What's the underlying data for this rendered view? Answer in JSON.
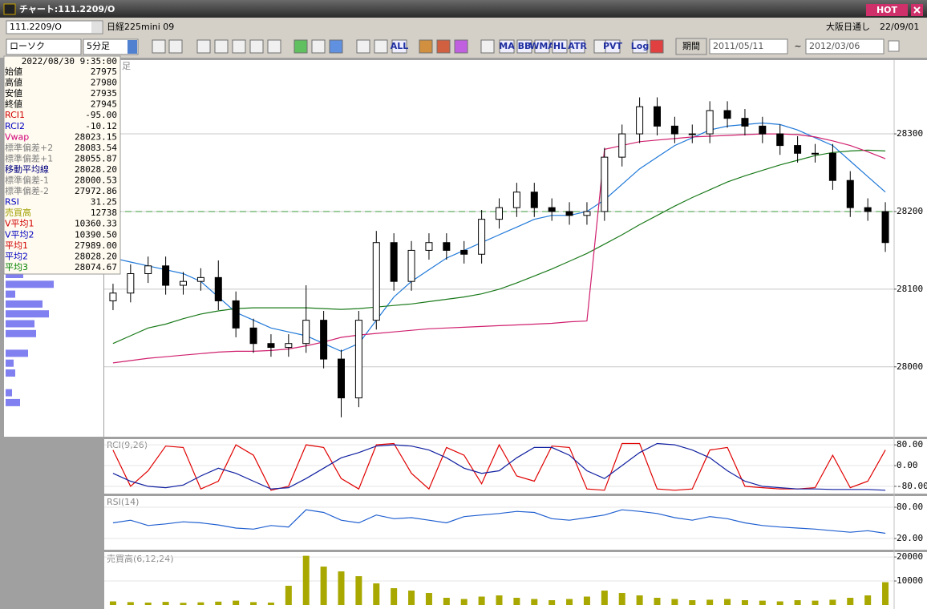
{
  "window": {
    "title": "チャート:111.2209/O",
    "hot": "HOT"
  },
  "header": {
    "symbol": "111.2209/O",
    "name": "日経225mini 09",
    "session": "大阪日通し",
    "date": "22/09/01"
  },
  "toolbar": {
    "chart_style": "ローソク",
    "interval": "5分足",
    "buttons": [
      "ALL",
      "MA",
      "BB",
      "WMA",
      "HL",
      "ATR",
      "PVT",
      "Log"
    ],
    "period": "期間",
    "from": "2011/05/11",
    "tilde": "~",
    "to": "2012/03/06"
  },
  "info_panel": {
    "datetime": "2022/08/30 9:35:00",
    "rows": [
      {
        "label": "始値",
        "value": "27975",
        "color": "#000000"
      },
      {
        "label": "高値",
        "value": "27980",
        "color": "#000000"
      },
      {
        "label": "安値",
        "value": "27935",
        "color": "#000000"
      },
      {
        "label": "終値",
        "value": "27945",
        "color": "#000000"
      },
      {
        "label": "RCI1",
        "value": "-95.00",
        "color": "#d00000"
      },
      {
        "label": "RCI2",
        "value": "-10.12",
        "color": "#0000c0"
      },
      {
        "label": "Vwap",
        "value": "28023.15",
        "color": "#d0007a"
      },
      {
        "label": "標準偏差+2",
        "value": "28083.54",
        "color": "#808080"
      },
      {
        "label": "標準偏差+1",
        "value": "28055.87",
        "color": "#808080"
      },
      {
        "label": "移動平均線",
        "value": "28028.20",
        "color": "#000080"
      },
      {
        "label": "標準偏差-1",
        "value": "28000.53",
        "color": "#808080"
      },
      {
        "label": "標準偏差-2",
        "value": "27972.86",
        "color": "#808080"
      },
      {
        "label": "RSI",
        "value": "31.25",
        "color": "#0000c0"
      },
      {
        "label": "売買高",
        "value": "12738",
        "color": "#a0a000"
      },
      {
        "label": "V平均1",
        "value": "10360.33",
        "color": "#d00000"
      },
      {
        "label": "V平均2",
        "value": "10390.50",
        "color": "#0000c0"
      },
      {
        "label": "平均1",
        "value": "27989.00",
        "color": "#d00000"
      },
      {
        "label": "平均2",
        "value": "28028.20",
        "color": "#0000c0"
      },
      {
        "label": "平均3",
        "value": "28074.67",
        "color": "#008000"
      }
    ]
  },
  "chart_data": [
    {
      "type": "candlestick",
      "title": "足",
      "up_color": "#ffffff",
      "down_color": "#000000",
      "open": [
        28085,
        28095,
        28120,
        28130,
        28105,
        28110,
        28115,
        28085,
        28050,
        28030,
        28025,
        28030,
        28060,
        28010,
        27960,
        28060,
        28160,
        28110,
        28150,
        28160,
        28150,
        28145,
        28190,
        28205,
        28225,
        28205,
        28200,
        28195,
        28200,
        28270,
        28300,
        28335,
        28310,
        28300,
        28300,
        28330,
        28320,
        28310,
        28300,
        28285,
        28275,
        28275,
        28240,
        28205,
        28200
      ],
      "high": [
        28107,
        28132,
        28142,
        28142,
        28122,
        28127,
        28137,
        28097,
        28062,
        28042,
        28042,
        28105,
        28072,
        28022,
        28072,
        28175,
        28172,
        28162,
        28172,
        28172,
        28162,
        28202,
        28217,
        28237,
        28237,
        28217,
        28212,
        28212,
        28282,
        28312,
        28347,
        28347,
        28322,
        28312,
        28342,
        28342,
        28332,
        28322,
        28312,
        28297,
        28287,
        28287,
        28252,
        28217,
        28212
      ],
      "low": [
        28073,
        28083,
        28108,
        28093,
        28093,
        28098,
        28073,
        28038,
        28018,
        28013,
        28013,
        28018,
        27998,
        27935,
        27948,
        28048,
        28098,
        28098,
        28138,
        28138,
        28133,
        28133,
        28178,
        28193,
        28193,
        28188,
        28183,
        28183,
        28188,
        28258,
        28288,
        28298,
        28288,
        28288,
        28288,
        28308,
        28298,
        28288,
        28273,
        28263,
        28263,
        28228,
        28193,
        28188,
        28148
      ],
      "close": [
        28095,
        28120,
        28130,
        28105,
        28110,
        28115,
        28085,
        28050,
        28030,
        28025,
        28030,
        28060,
        28010,
        27960,
        28060,
        28160,
        28110,
        28150,
        28160,
        28150,
        28145,
        28190,
        28205,
        28225,
        28205,
        28200,
        28195,
        28200,
        28270,
        28300,
        28335,
        28310,
        28300,
        28300,
        28330,
        28320,
        28310,
        28300,
        28285,
        28275,
        28275,
        28240,
        28205,
        28200,
        28160
      ],
      "series": [
        {
          "color": "#1f78d8",
          "values": [
            28140,
            28135,
            28130,
            28125,
            28120,
            28110,
            28090,
            28070,
            28060,
            28050,
            28045,
            28040,
            28030,
            28020,
            28030,
            28060,
            28090,
            28110,
            28125,
            28140,
            28150,
            28160,
            28170,
            28180,
            28190,
            28195,
            28195,
            28200,
            28215,
            28235,
            28255,
            28270,
            28285,
            28295,
            28305,
            28310,
            28312,
            28314,
            28312,
            28305,
            28295,
            28285,
            28265,
            28245,
            28225
          ]
        },
        {
          "color": "#1a7a1a",
          "values": [
            28030,
            28040,
            28050,
            28055,
            28062,
            28068,
            28072,
            28075,
            28076,
            28076,
            28076,
            28076,
            28075,
            28074,
            28075,
            28077,
            28079,
            28081,
            28084,
            28087,
            28090,
            28094,
            28100,
            28108,
            28117,
            28126,
            28136,
            28146,
            28158,
            28170,
            28183,
            28195,
            28207,
            28218,
            28228,
            28238,
            28246,
            28253,
            28260,
            28266,
            28272,
            28276,
            28278,
            28279,
            28278
          ]
        },
        {
          "color": "#d0206e",
          "values": [
            28005,
            28008,
            28011,
            28013,
            28015,
            28017,
            28019,
            28020,
            28020,
            28021,
            28023,
            28027,
            28032,
            28038,
            28041,
            28043,
            28045,
            28047,
            28049,
            28050,
            28051,
            28052,
            28053,
            28054,
            28055,
            28056,
            28058,
            28059,
            28280,
            28285,
            28290,
            28292,
            28294,
            28296,
            28297,
            28298,
            28299,
            28300,
            28300,
            28299,
            28296,
            28291,
            28285,
            28277,
            28268
          ]
        }
      ],
      "reference_line": 28200,
      "reference_color": "#3a9a3a",
      "ylim": [
        27910,
        28395
      ],
      "yticks": [
        28000,
        28100,
        28200,
        28300
      ],
      "grid": true
    },
    {
      "type": "line",
      "title": "RCI(9,26)",
      "series": [
        {
          "color": "#e00000",
          "values": [
            60,
            -80,
            -20,
            75,
            70,
            -90,
            -60,
            80,
            40,
            -95,
            -80,
            80,
            70,
            -50,
            -90,
            80,
            85,
            -30,
            -90,
            70,
            40,
            -70,
            80,
            -40,
            -60,
            75,
            70,
            -90,
            -95,
            85,
            85,
            -90,
            -95,
            -90,
            60,
            70,
            -80,
            -85,
            -90,
            -90,
            -85,
            40,
            -85,
            -60,
            60
          ]
        },
        {
          "color": "#1020a0",
          "values": [
            -30,
            -60,
            -80,
            -85,
            -75,
            -40,
            -10,
            -30,
            -60,
            -90,
            -85,
            -50,
            -10,
            30,
            50,
            75,
            80,
            75,
            60,
            30,
            -10,
            -30,
            -20,
            30,
            70,
            70,
            40,
            -20,
            -50,
            0,
            50,
            85,
            80,
            60,
            30,
            -20,
            -60,
            -80,
            -85,
            -90,
            -90,
            -92,
            -92,
            -92,
            -95
          ]
        }
      ],
      "ylim": [
        -108,
        102
      ],
      "yticks": [
        {
          "value": 80,
          "label": "80.00"
        },
        {
          "value": 0,
          "label": "0.00"
        },
        {
          "value": -80,
          "label": "-80.00"
        }
      ]
    },
    {
      "type": "line",
      "title": "RSI(14)",
      "series": [
        {
          "color": "#1f5fd0",
          "values": [
            50,
            55,
            45,
            48,
            52,
            50,
            46,
            40,
            38,
            45,
            42,
            75,
            70,
            55,
            50,
            65,
            58,
            60,
            55,
            50,
            62,
            65,
            68,
            72,
            70,
            58,
            55,
            60,
            65,
            75,
            72,
            68,
            60,
            55,
            62,
            58,
            50,
            45,
            42,
            40,
            38,
            35,
            32,
            35,
            30
          ]
        }
      ],
      "ylim": [
        -1.5,
        101.5
      ],
      "yticks": [
        {
          "value": 80,
          "label": "80.00"
        },
        {
          "value": 20,
          "label": "20.00"
        }
      ]
    },
    {
      "type": "bar",
      "title": "売買高(6,12,24)",
      "color": "#a8a800",
      "values": [
        1500,
        1200,
        1000,
        1300,
        900,
        1100,
        1400,
        1800,
        1200,
        1000,
        8000,
        20500,
        16000,
        14000,
        12000,
        9000,
        7000,
        6000,
        5000,
        3000,
        2500,
        3500,
        4000,
        3000,
        2500,
        2000,
        2500,
        3500,
        6000,
        5000,
        4000,
        3000,
        2500,
        2000,
        2200,
        2500,
        2000,
        1800,
        1500,
        2000,
        1800,
        2200,
        3000,
        4000,
        9500
      ],
      "ylim": [
        0,
        21700
      ],
      "yticks": [
        20000,
        10000
      ]
    },
    {
      "type": "hbar",
      "color": "#8080f0",
      "values": [
        22,
        60,
        12,
        46,
        54,
        36,
        38,
        0,
        28,
        10,
        12,
        0,
        8,
        18
      ],
      "xlim": [
        0,
        120
      ]
    }
  ]
}
